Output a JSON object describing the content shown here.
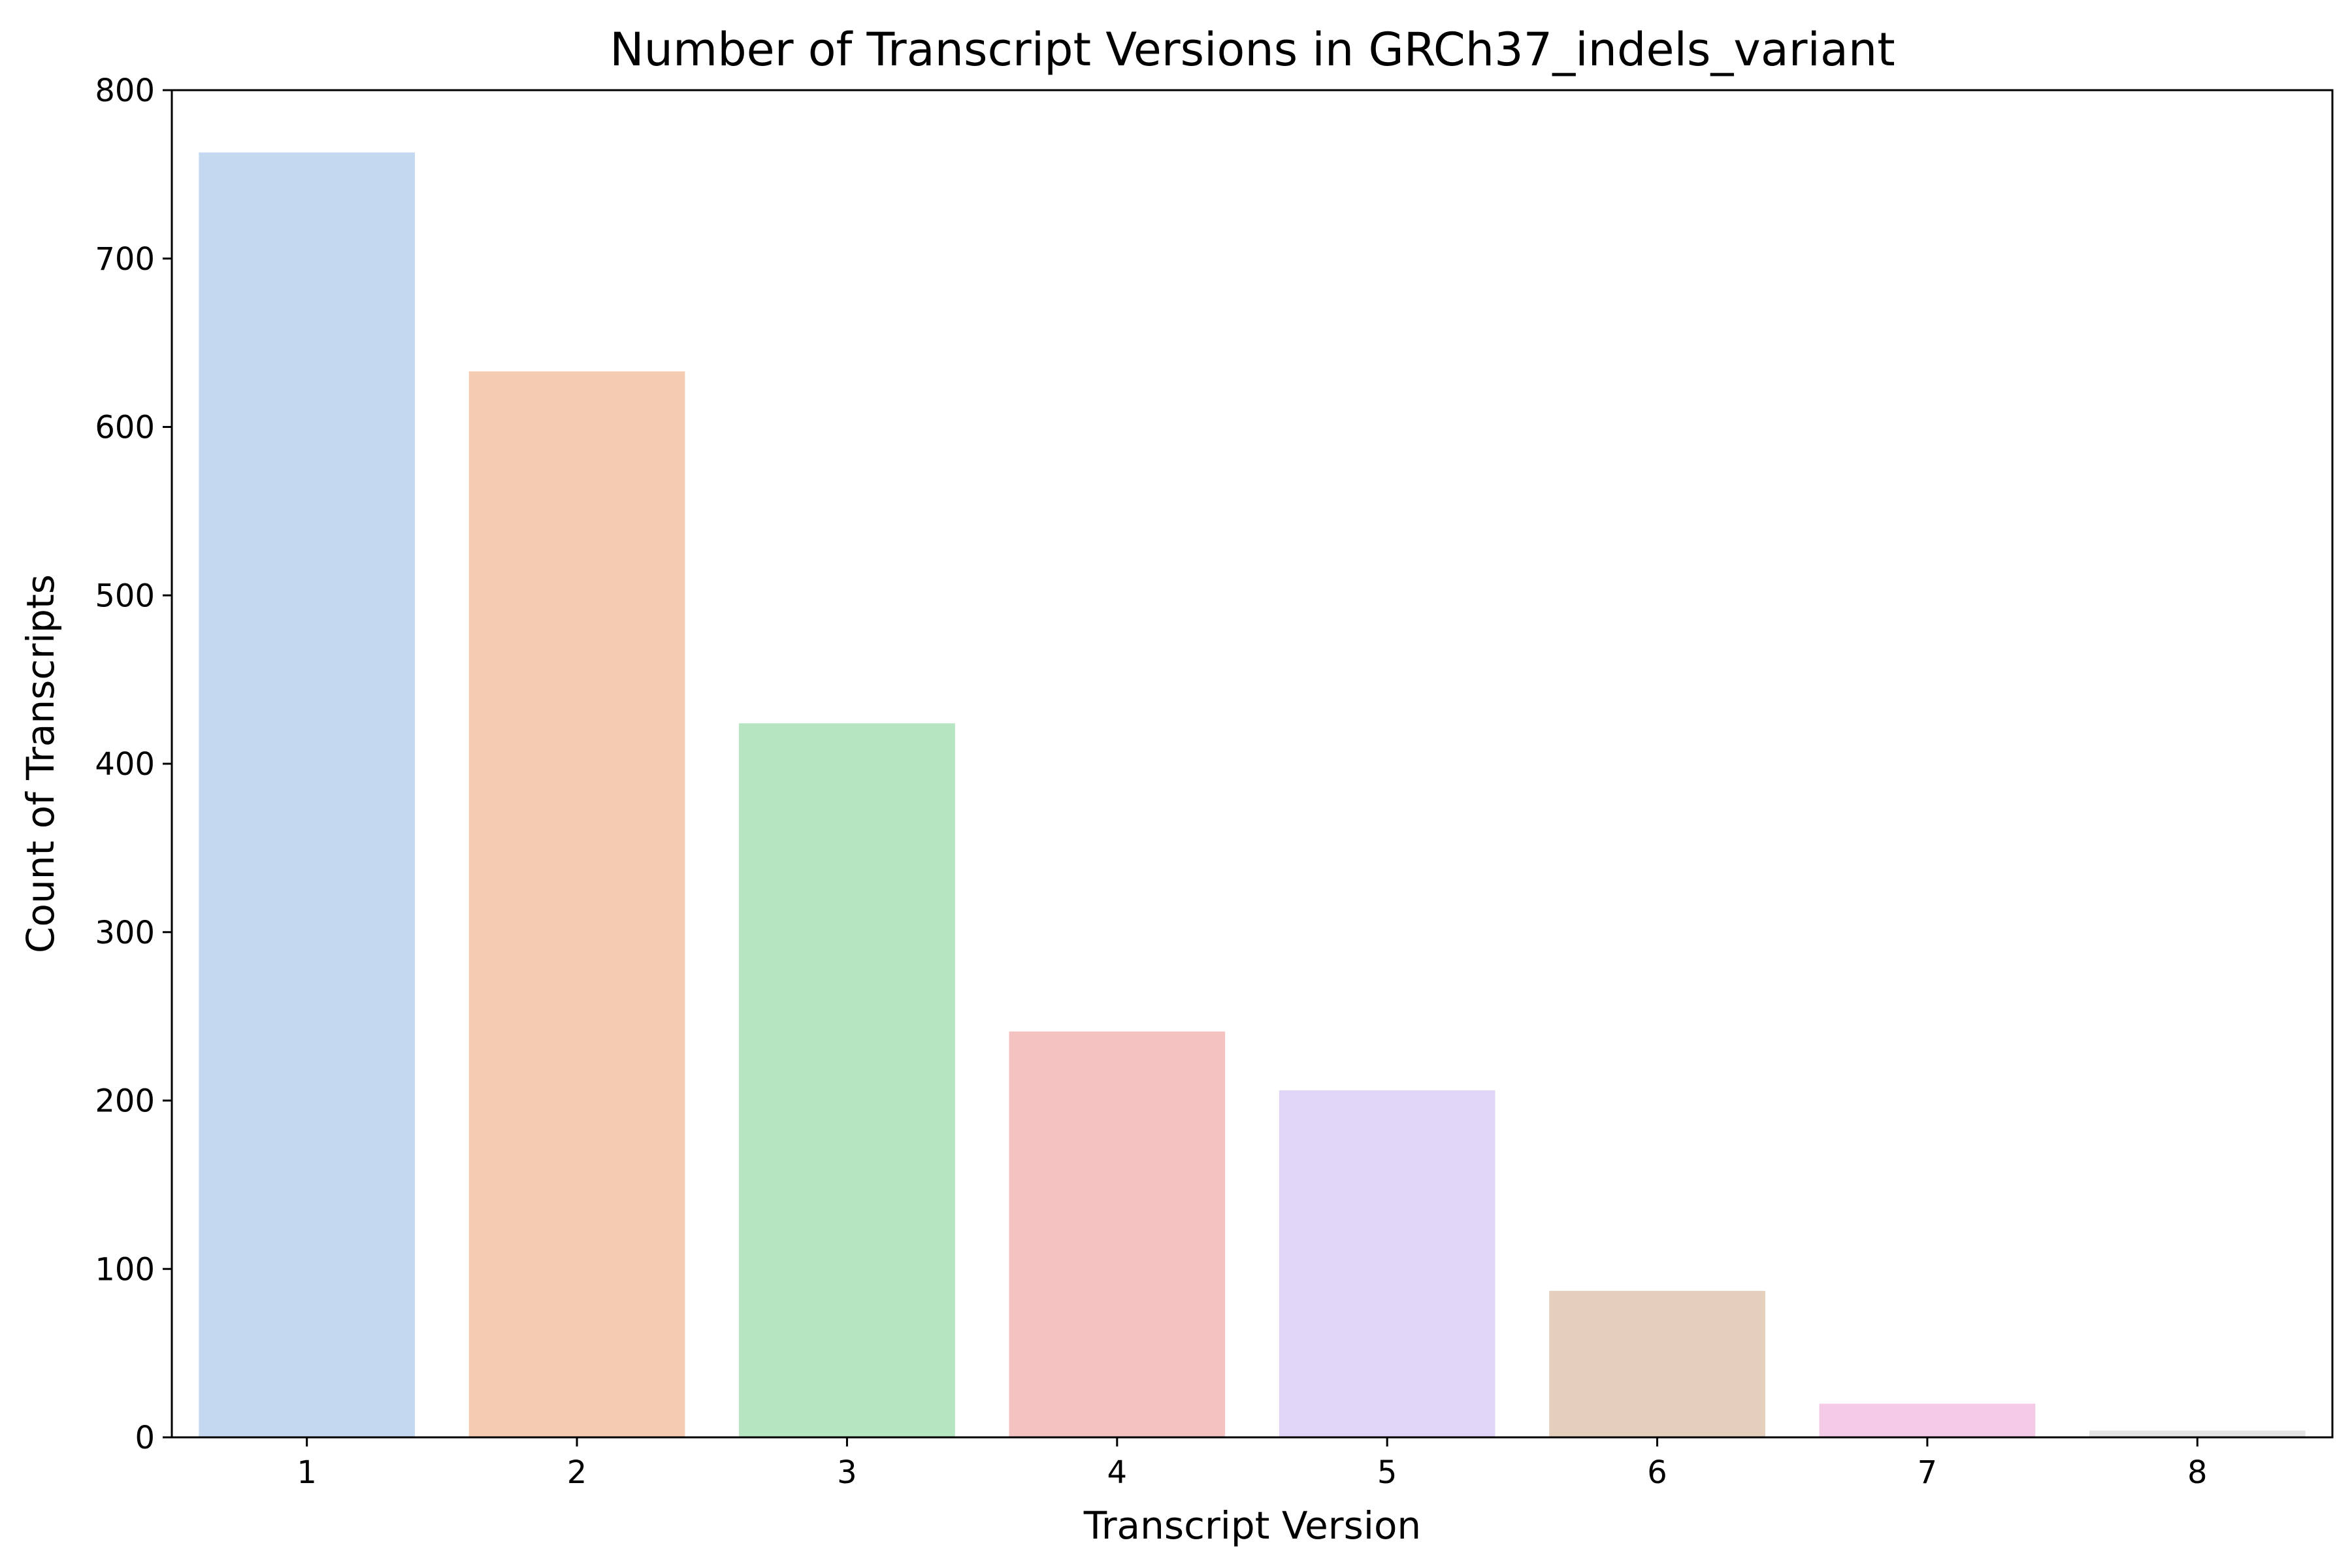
{
  "chart_data": {
    "type": "bar",
    "title": "Number of Transcript Versions in GRCh37_indels_variant",
    "xlabel": "Transcript Version",
    "ylabel": "Count of Transcripts",
    "categories": [
      "1",
      "2",
      "3",
      "4",
      "5",
      "6",
      "7",
      "8"
    ],
    "values": [
      763,
      633,
      424,
      241,
      206,
      87,
      20,
      4
    ],
    "ylim": [
      0,
      800
    ],
    "yticks": [
      "0",
      "100",
      "200",
      "300",
      "400",
      "500",
      "600",
      "700",
      "800"
    ],
    "colors": [
      "#c4d8ef",
      "#f5cbb1",
      "#b6e5c1",
      "#f5c2c2",
      "#e0d4f7",
      "#e3cfbb",
      "#f5cae6",
      "#e4e4e4"
    ],
    "grid": false,
    "legend": "none"
  }
}
